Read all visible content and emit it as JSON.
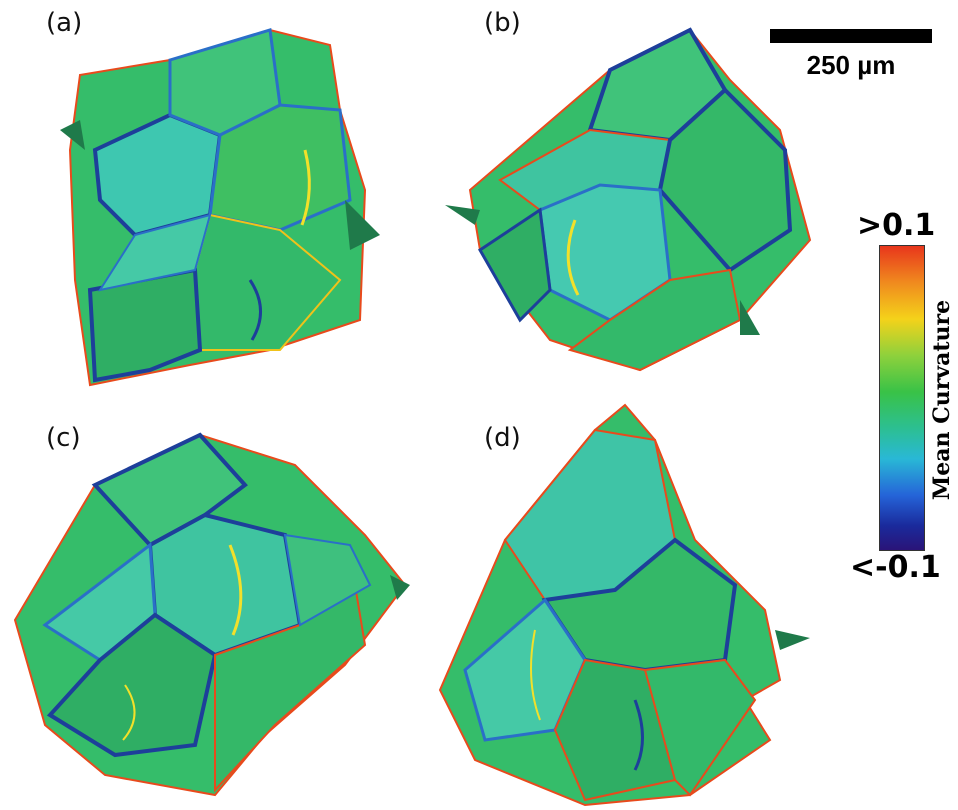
{
  "panels": [
    {
      "label": "(a)"
    },
    {
      "label": "(b)"
    },
    {
      "label": "(c)"
    },
    {
      "label": "(d)"
    }
  ],
  "scale_bar": {
    "label": "250 µm"
  },
  "colorbar": {
    "title": "Mean Curvature",
    "max_label": ">0.1",
    "min_label": "<-0.1",
    "colors": [
      "#e8361c",
      "#f4d21a",
      "#39c247",
      "#29b8d6",
      "#2a1478"
    ]
  }
}
